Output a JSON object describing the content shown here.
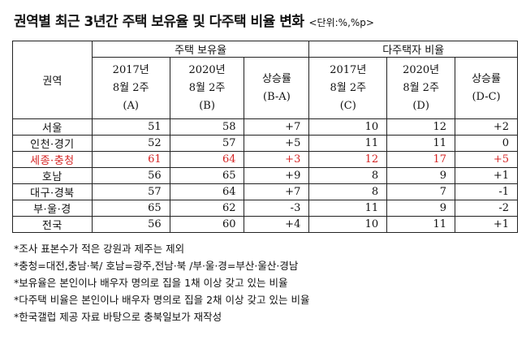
{
  "title": "권역별 최근 3년간 주택 보유율 및 다주택 비율 변화",
  "unit": "<단위:%,%p>",
  "table": {
    "region_header": "권역",
    "group_headers": [
      "주택 보유율",
      "다주택자 비율"
    ],
    "sub_headers": [
      [
        "2017년",
        "8월 2주",
        "(A)"
      ],
      [
        "2020년",
        "8월 2주",
        "(B)"
      ],
      [
        "상승률",
        "(B-A)"
      ],
      [
        "2017년",
        "8월 2주",
        "(C)"
      ],
      [
        "2020년",
        "8월 2주",
        "(D)"
      ],
      [
        "상승률",
        "(D-C)"
      ]
    ],
    "rows": [
      {
        "region": "서울",
        "values": [
          "51",
          "58",
          "+7",
          "10",
          "12",
          "+2"
        ]
      },
      {
        "region": "인천·경기",
        "values": [
          "52",
          "57",
          "+5",
          "11",
          "11",
          "0"
        ]
      },
      {
        "region": "세종·충청",
        "values": [
          "61",
          "64",
          "+3",
          "12",
          "17",
          "+5"
        ],
        "highlight": true
      },
      {
        "region": "호남",
        "values": [
          "56",
          "65",
          "+9",
          "8",
          "9",
          "+1"
        ]
      },
      {
        "region": "대구·경북",
        "values": [
          "57",
          "64",
          "+7",
          "8",
          "7",
          "-1"
        ]
      },
      {
        "region": "부·울·경",
        "values": [
          "65",
          "62",
          "-3",
          "11",
          "9",
          "-2"
        ]
      },
      {
        "region": "전국",
        "values": [
          "56",
          "60",
          "+4",
          "10",
          "11",
          "+1"
        ]
      }
    ],
    "highlight_color": "#d42424"
  },
  "notes": [
    "*조사 표본수가 적은 강원과 제주는 제외",
    "*충청=대전,충남·북/ 호남=광주,전남·북 /부·울·경=부산·울산·경남",
    "*보유율은 본인이나 배우자 명의로 집을 1채 이상 갖고 있는 비율",
    "*다주택 비율은 본인이나 배우자 명의로 집을 2채 이상 갖고 있는 비율",
    "*한국갤럽 제공 자료 바탕으로 충북일보가 재작성"
  ]
}
